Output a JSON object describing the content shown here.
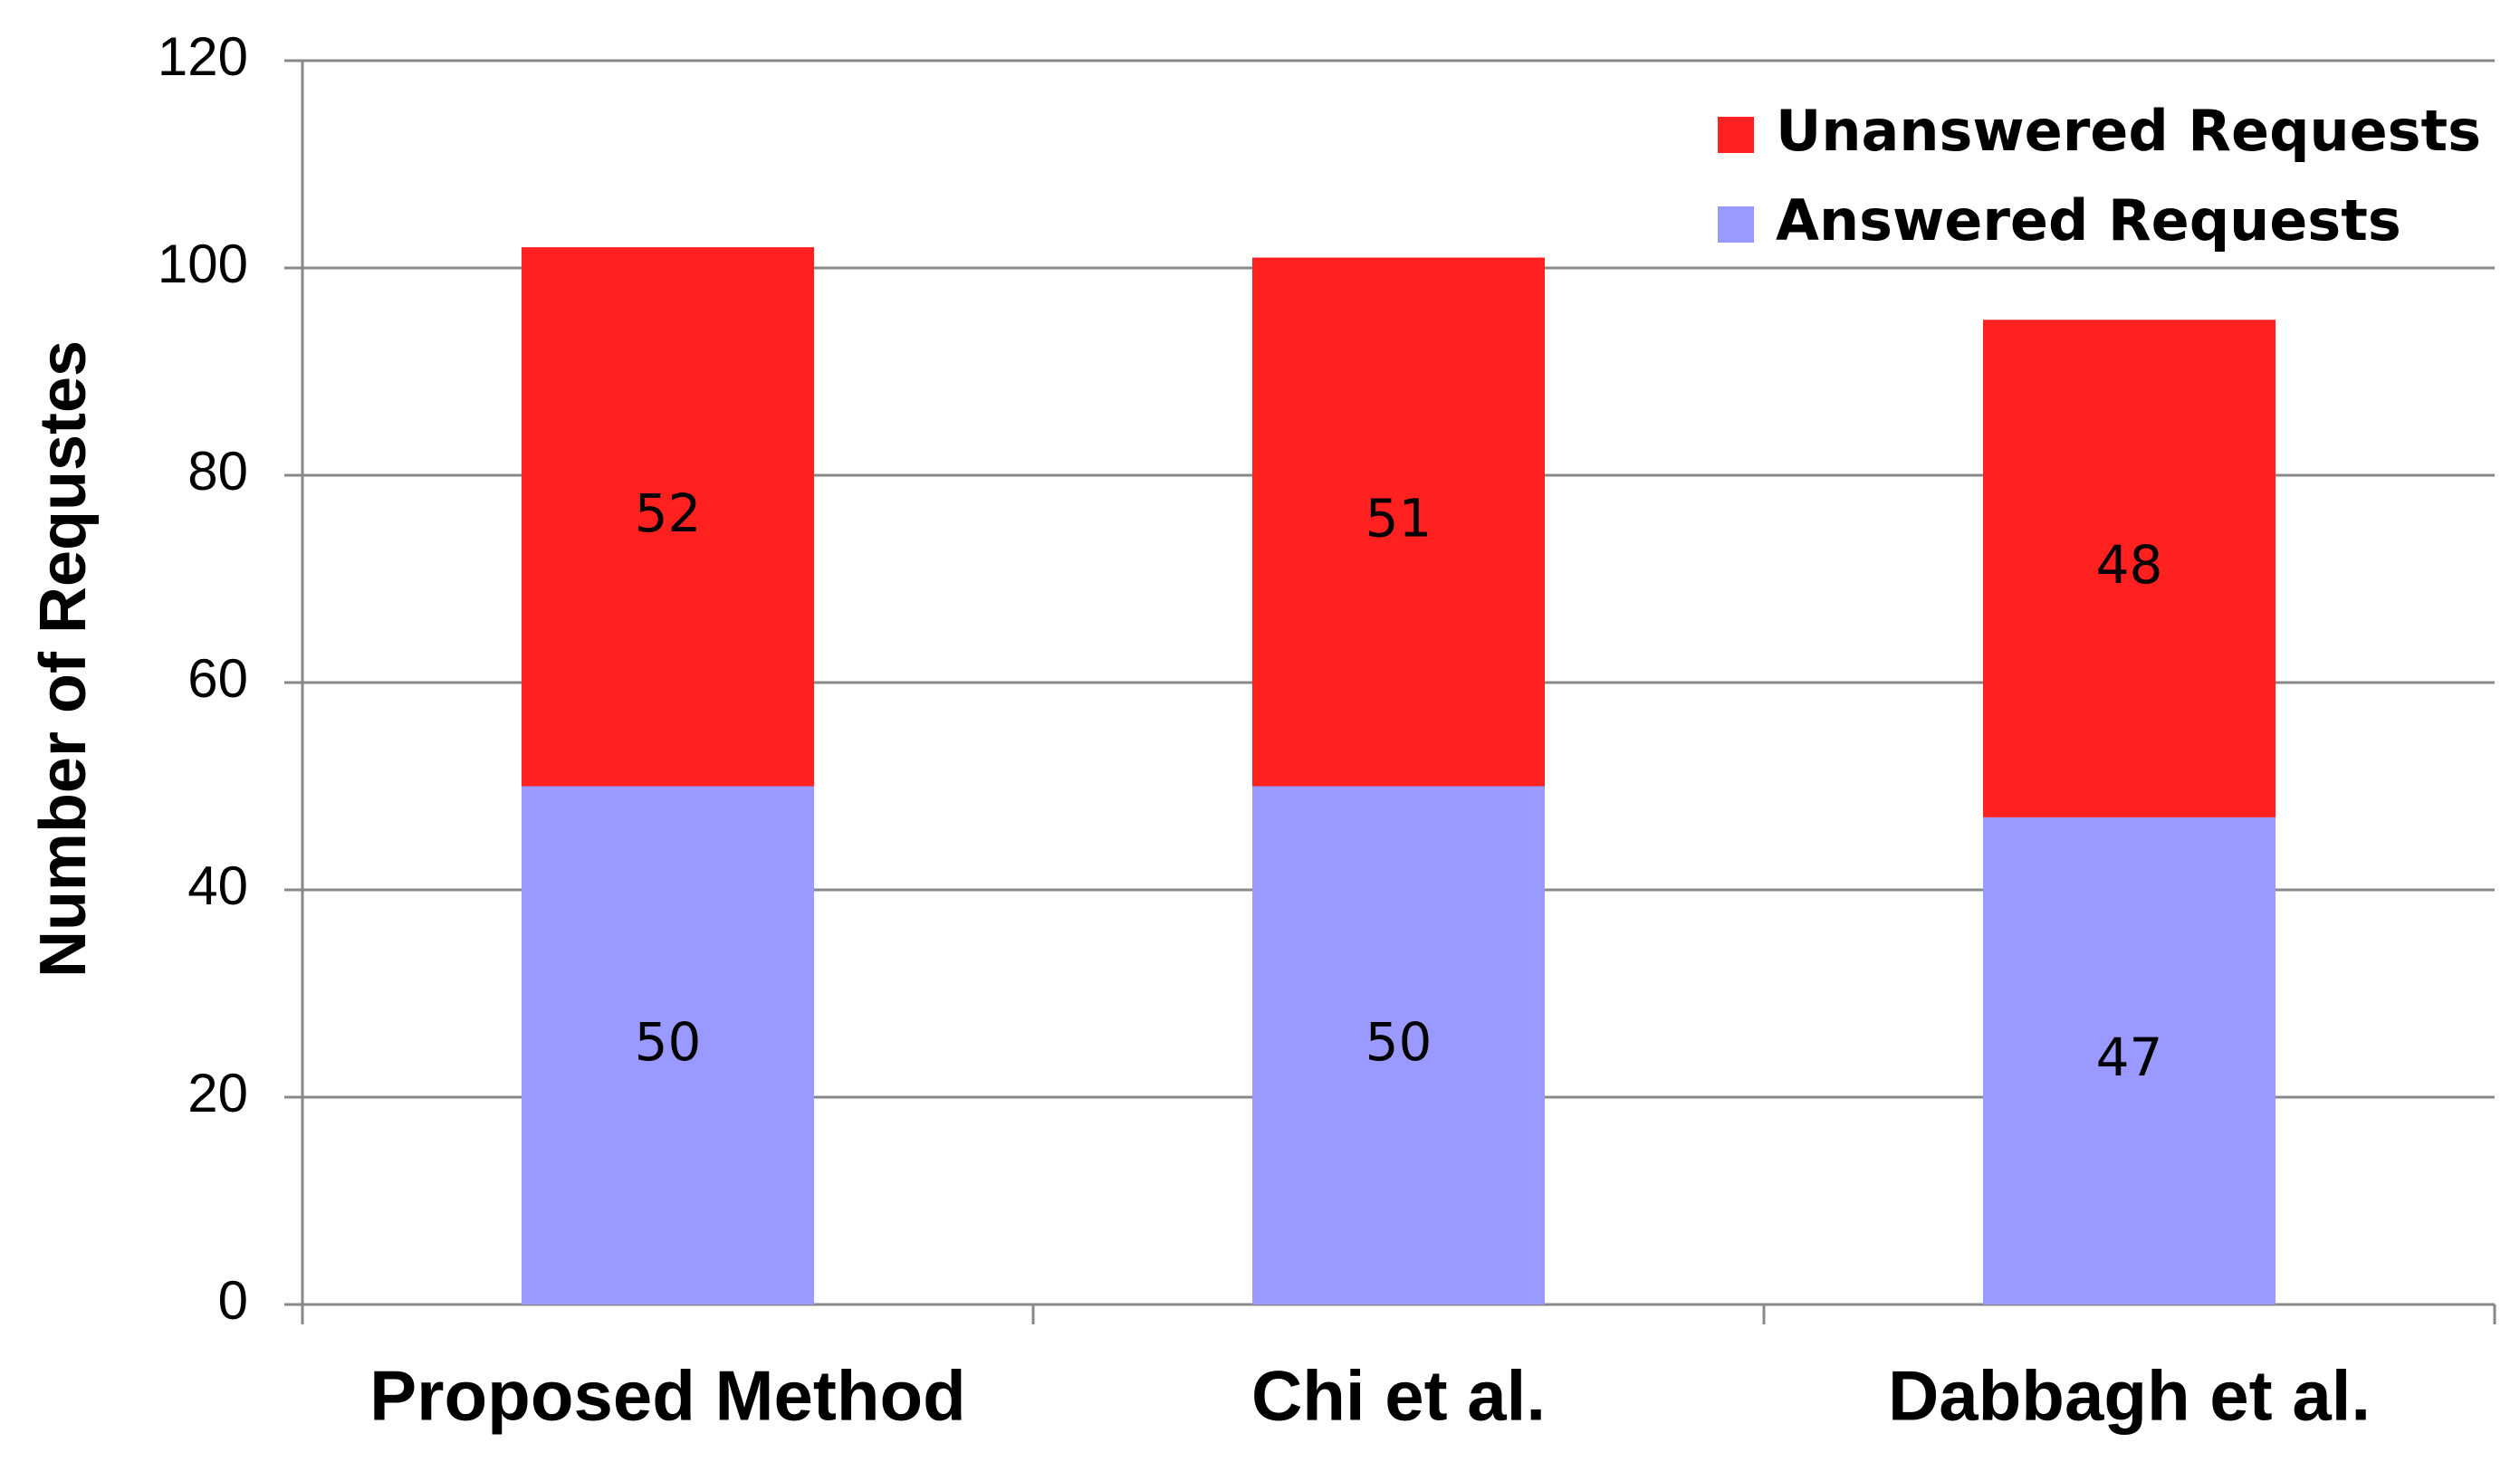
{
  "chart_data": {
    "type": "stacked_bar",
    "y_label": "Number of Requstes",
    "categories": [
      "Proposed Method",
      "Chi et al.",
      "Dabbagh et al."
    ],
    "series": [
      {
        "name": "Answered Requests",
        "color": "#9999ff",
        "values": [
          50,
          50,
          47
        ]
      },
      {
        "name": "Unanswered Requests",
        "color": "#ff2020",
        "values": [
          52,
          51,
          48
        ]
      }
    ],
    "ylim": [
      0,
      120
    ],
    "yticks": [
      0,
      20,
      40,
      60,
      80,
      100,
      120
    ],
    "grid": true,
    "legend": "upper right"
  }
}
